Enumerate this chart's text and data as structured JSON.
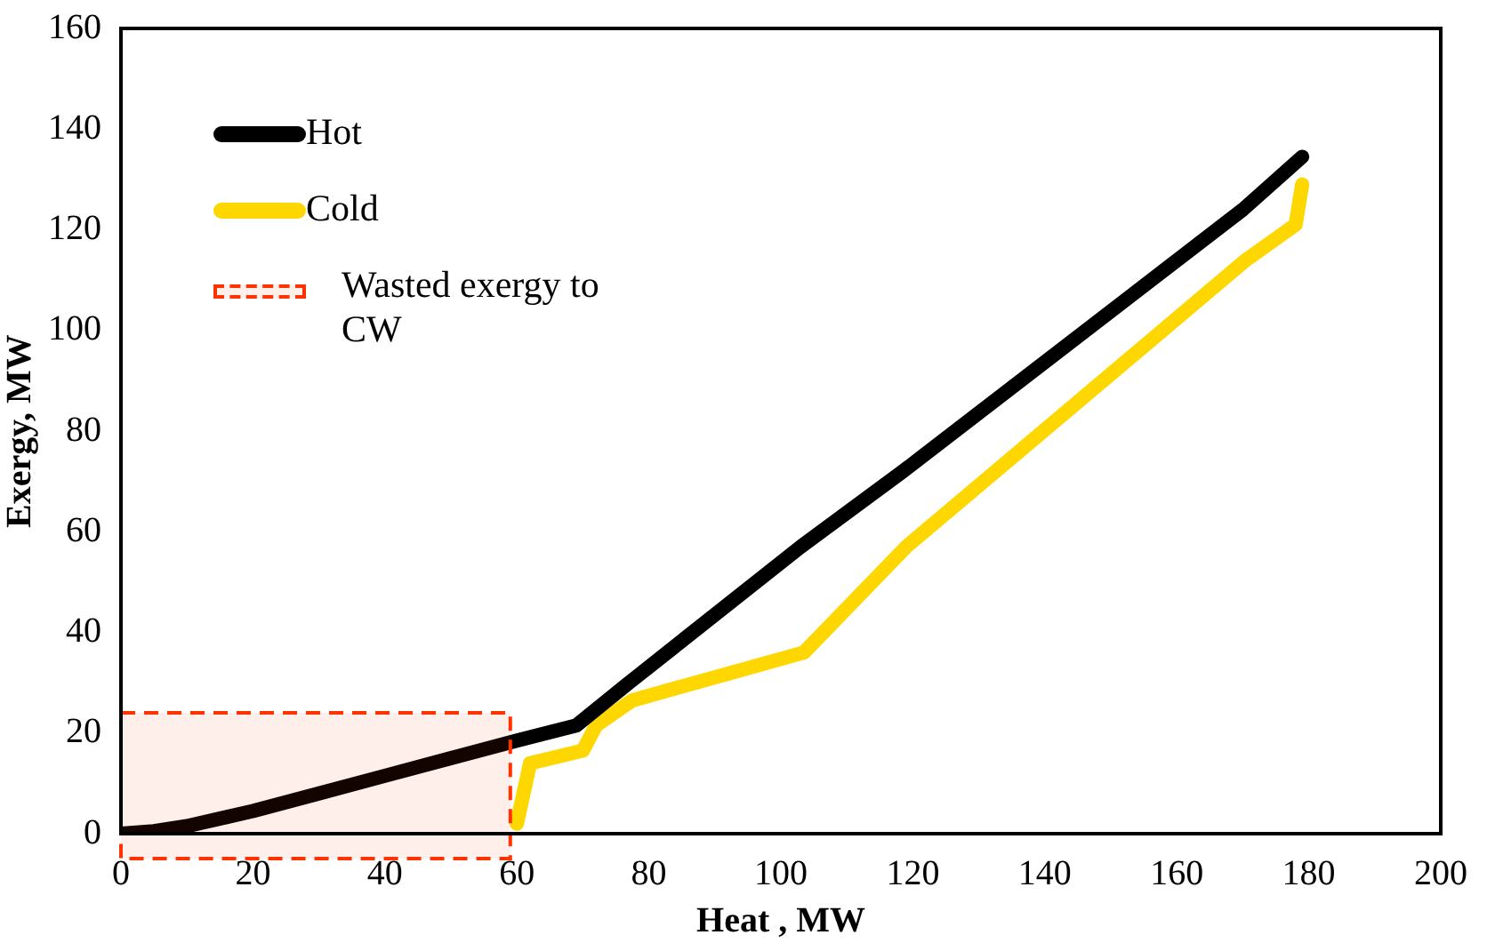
{
  "chart_data": {
    "type": "line",
    "xlabel": "Heat , MW",
    "ylabel": "Exergy, MW",
    "xlim": [
      0,
      200
    ],
    "xticks": [
      0,
      20,
      40,
      60,
      80,
      100,
      120,
      140,
      160,
      180,
      200
    ],
    "ylim": [
      0,
      160
    ],
    "yticks": [
      0,
      20,
      40,
      60,
      80,
      100,
      120,
      140,
      160
    ],
    "grid": false,
    "legend": "top left",
    "marker": "none",
    "line_style": "solid",
    "series": [
      {
        "name": "Hot",
        "color": "#000000",
        "x": [
          0,
          5,
          10,
          20,
          30,
          40,
          50,
          60,
          69,
          77,
          103,
          118.5,
          170,
          179
        ],
        "values": [
          0,
          0.5,
          1.5,
          4.5,
          8,
          11.5,
          15,
          18.5,
          21.5,
          30,
          57,
          72,
          124,
          134.5
        ]
      },
      {
        "name": "Cold",
        "color": "#ffd700",
        "x": [
          60,
          62,
          70,
          72,
          77.5,
          103.5,
          119,
          170.5,
          178,
          179
        ],
        "values": [
          2,
          14,
          16.5,
          21.5,
          26.5,
          36,
          57,
          114,
          121,
          129
        ]
      }
    ],
    "bands": [
      {
        "axis": "x",
        "from": 0,
        "to": 59,
        "label": "Wasted exergy to CW",
        "color": "#ff3300"
      }
    ]
  }
}
